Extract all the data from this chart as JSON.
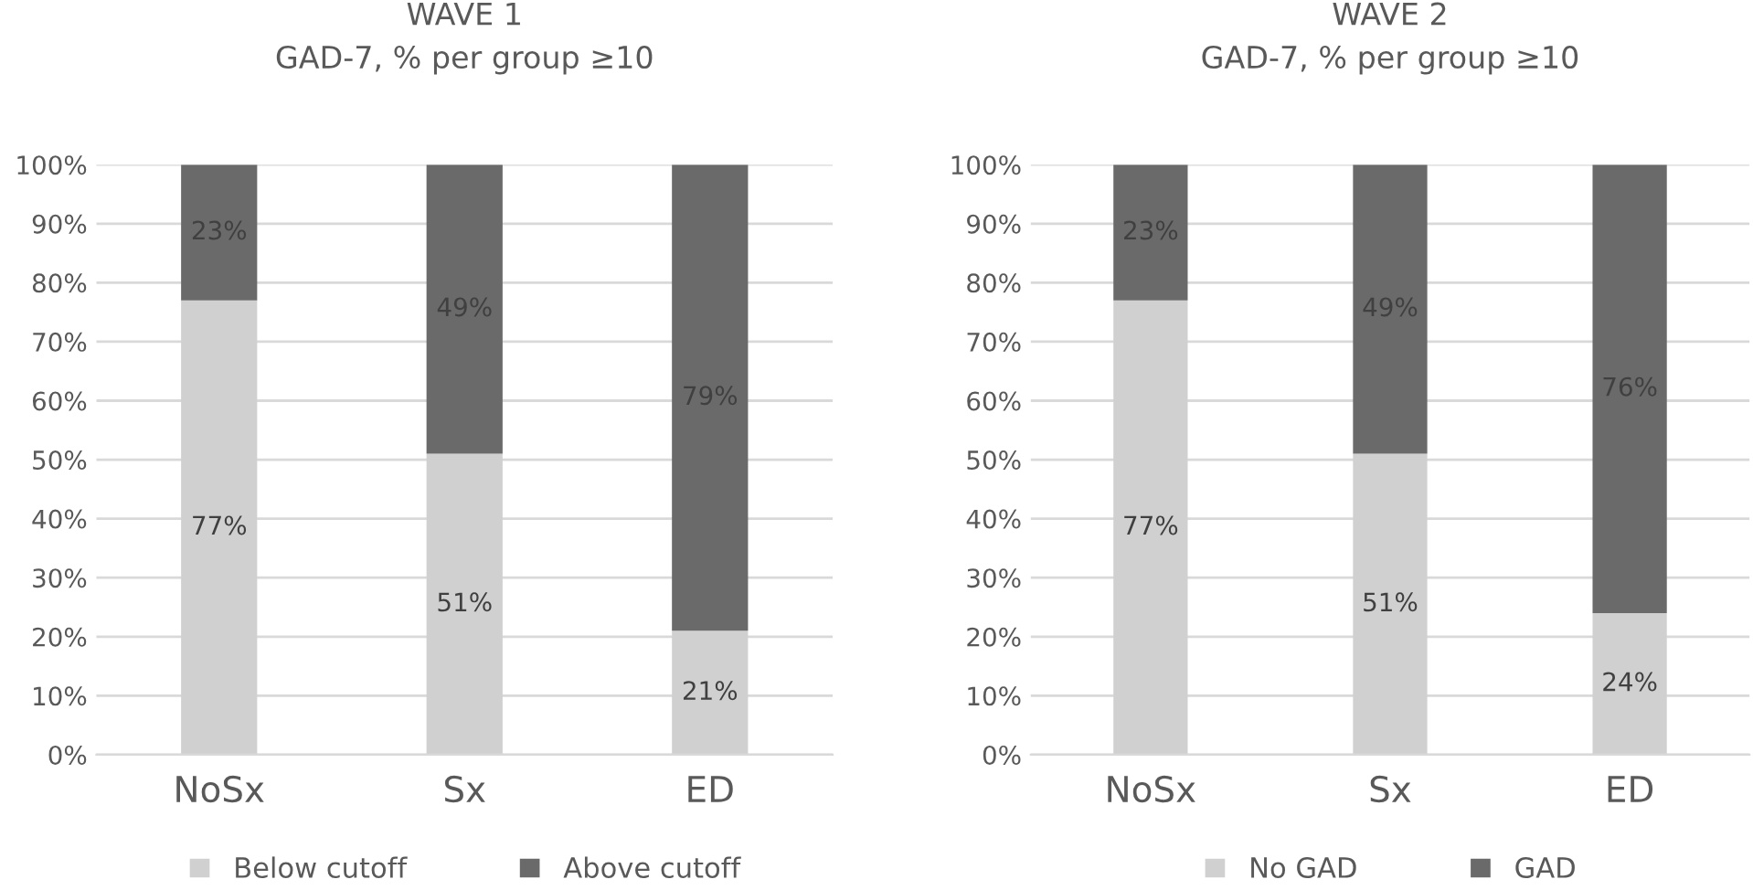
{
  "chart_data": [
    {
      "type": "bar",
      "title": "WAVE 1",
      "subtitle": "GAD-7, % per group ≥10",
      "categories": [
        "NoSx",
        "Sx",
        "ED"
      ],
      "stacked": true,
      "series": [
        {
          "name": "Below cutoff",
          "color": "#d0d0d0",
          "values": [
            77,
            51,
            21
          ],
          "value_labels": [
            "77%",
            "51%",
            "21%"
          ]
        },
        {
          "name": "Above cutoff",
          "color": "#6a6a6a",
          "values": [
            23,
            49,
            79
          ],
          "value_labels": [
            "23%",
            "49%",
            "79%"
          ]
        }
      ],
      "ylim": [
        0,
        100
      ],
      "yticks": [
        {
          "value": 0,
          "label": "0%"
        },
        {
          "value": 10,
          "label": "10%"
        },
        {
          "value": 20,
          "label": "20%"
        },
        {
          "value": 30,
          "label": "30%"
        },
        {
          "value": 40,
          "label": "40%"
        },
        {
          "value": 50,
          "label": "50%"
        },
        {
          "value": 60,
          "label": "60%"
        },
        {
          "value": 70,
          "label": "70%"
        },
        {
          "value": 80,
          "label": "80%"
        },
        {
          "value": 90,
          "label": "90%"
        },
        {
          "value": 100,
          "label": "100%"
        }
      ],
      "grid": "y",
      "legend": "bottom"
    },
    {
      "type": "bar",
      "title": "WAVE 2",
      "subtitle": "GAD-7, % per group ≥10",
      "categories": [
        "NoSx",
        "Sx",
        "ED"
      ],
      "stacked": true,
      "series": [
        {
          "name": "No GAD",
          "color": "#d0d0d0",
          "values": [
            77,
            51,
            24
          ],
          "value_labels": [
            "77%",
            "51%",
            "24%"
          ]
        },
        {
          "name": "GAD",
          "color": "#6a6a6a",
          "values": [
            23,
            49,
            76
          ],
          "value_labels": [
            "23%",
            "49%",
            "76%"
          ]
        }
      ],
      "ylim": [
        0,
        100
      ],
      "yticks": [
        {
          "value": 0,
          "label": "0%"
        },
        {
          "value": 10,
          "label": "10%"
        },
        {
          "value": 20,
          "label": "20%"
        },
        {
          "value": 30,
          "label": "30%"
        },
        {
          "value": 40,
          "label": "40%"
        },
        {
          "value": 50,
          "label": "50%"
        },
        {
          "value": 60,
          "label": "60%"
        },
        {
          "value": 70,
          "label": "70%"
        },
        {
          "value": 80,
          "label": "80%"
        },
        {
          "value": 90,
          "label": "90%"
        },
        {
          "value": 100,
          "label": "100%"
        }
      ],
      "grid": "y",
      "legend": "bottom"
    }
  ]
}
